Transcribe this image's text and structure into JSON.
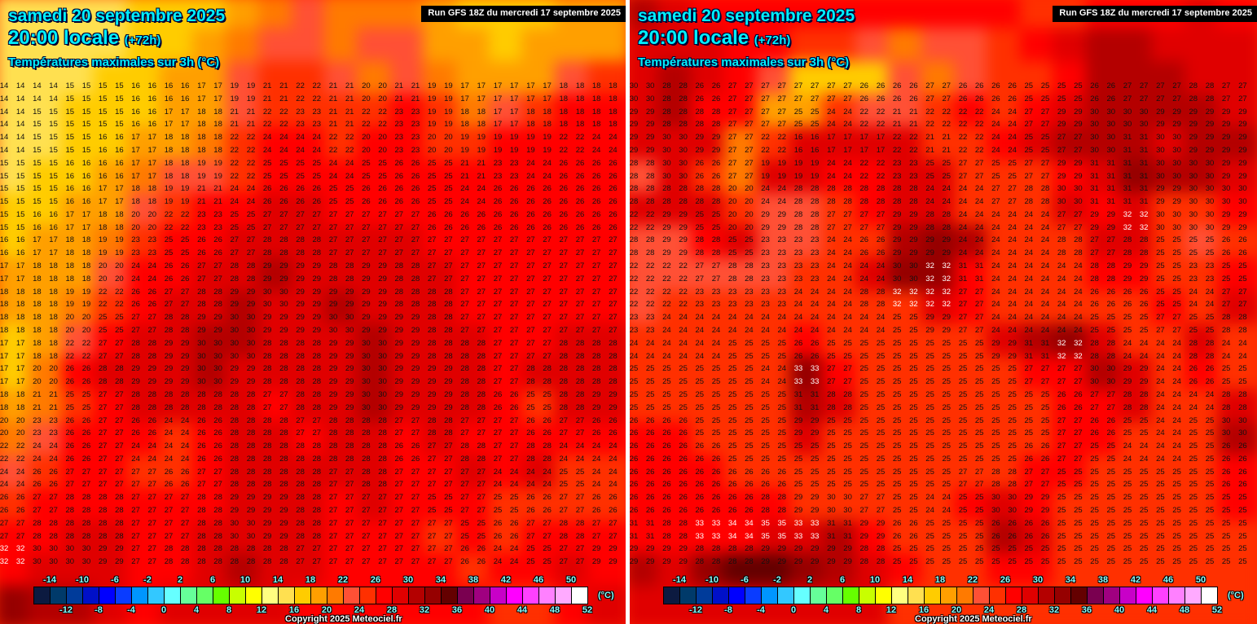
{
  "scale": {
    "unit": "(°C)",
    "labels_top": [
      "-14",
      "-10",
      "-6",
      "-2",
      "2",
      "6",
      "10",
      "14",
      "18",
      "22",
      "26",
      "30",
      "34",
      "38",
      "42",
      "46",
      "50"
    ],
    "labels_bottom": [
      "-12",
      "-8",
      "-4",
      "0",
      "4",
      "8",
      "12",
      "16",
      "20",
      "24",
      "28",
      "32",
      "36",
      "40",
      "44",
      "48",
      "52"
    ],
    "colors": [
      "#0c1a40",
      "#003a6a",
      "#003b9a",
      "#0010c8",
      "#0000ff",
      "#0a3cff",
      "#0096ff",
      "#33c8ff",
      "#66ffff",
      "#66ff99",
      "#66ff66",
      "#66ff00",
      "#c8ff00",
      "#ffff00",
      "#ffff80",
      "#ffe050",
      "#ffcc00",
      "#ff9f00",
      "#ff7a00",
      "#ff5035",
      "#ff3000",
      "#ff0000",
      "#e00000",
      "#b40000",
      "#960000",
      "#640000",
      "#7a0050",
      "#a00080",
      "#c800c8",
      "#ff00ff",
      "#ff40ff",
      "#ff80ff",
      "#ffaaff",
      "#ffffff"
    ]
  },
  "maps": [
    {
      "date": "samedi 20 septembre 2025",
      "time": "20:00 locale",
      "lead": "(+72h)",
      "parameter": "Températures maximales sur 3h (°C)",
      "run": "Run GFS 18Z du mercredi 17 septembre 2025",
      "copyright": "Copyright 2025 Meteociel.fr",
      "grid": [
        [
          14,
          14,
          15,
          15,
          16,
          16,
          17,
          19,
          21,
          22,
          21,
          20,
          21,
          19,
          17,
          17,
          17,
          18,
          18
        ],
        [
          14,
          15,
          15,
          15,
          16,
          17,
          18,
          21,
          22,
          23,
          21,
          22,
          23,
          19,
          18,
          17,
          18,
          18,
          18
        ],
        [
          14,
          15,
          15,
          16,
          17,
          18,
          18,
          22,
          24,
          24,
          22,
          20,
          23,
          20,
          19,
          19,
          19,
          22,
          24
        ],
        [
          15,
          15,
          16,
          16,
          17,
          18,
          19,
          22,
          25,
          25,
          24,
          25,
          26,
          25,
          21,
          23,
          24,
          26,
          26
        ],
        [
          15,
          15,
          16,
          17,
          18,
          19,
          21,
          24,
          26,
          26,
          25,
          26,
          26,
          25,
          24,
          26,
          26,
          26,
          26
        ],
        [
          15,
          16,
          17,
          18,
          20,
          22,
          23,
          25,
          27,
          27,
          27,
          27,
          27,
          26,
          26,
          26,
          26,
          26,
          26
        ],
        [
          16,
          17,
          18,
          19,
          23,
          25,
          26,
          27,
          28,
          28,
          27,
          27,
          27,
          27,
          27,
          27,
          27,
          27,
          27
        ],
        [
          17,
          18,
          18,
          20,
          24,
          26,
          27,
          28,
          29,
          29,
          28,
          29,
          28,
          27,
          27,
          27,
          27,
          27,
          27
        ],
        [
          18,
          18,
          19,
          22,
          26,
          27,
          28,
          29,
          30,
          29,
          29,
          29,
          28,
          28,
          27,
          27,
          27,
          27,
          27
        ],
        [
          18,
          18,
          20,
          25,
          27,
          28,
          29,
          30,
          29,
          29,
          30,
          29,
          29,
          28,
          27,
          27,
          27,
          27,
          27
        ],
        [
          17,
          18,
          22,
          27,
          28,
          29,
          30,
          30,
          28,
          28,
          29,
          30,
          29,
          28,
          28,
          27,
          27,
          28,
          28
        ],
        [
          17,
          20,
          26,
          28,
          29,
          29,
          30,
          29,
          28,
          28,
          29,
          30,
          29,
          29,
          28,
          27,
          28,
          28,
          28
        ],
        [
          18,
          21,
          25,
          27,
          28,
          28,
          28,
          28,
          27,
          28,
          29,
          30,
          29,
          29,
          28,
          26,
          25,
          28,
          29
        ],
        [
          20,
          23,
          26,
          27,
          26,
          24,
          26,
          28,
          28,
          27,
          28,
          28,
          27,
          28,
          27,
          27,
          26,
          27,
          26
        ],
        [
          22,
          24,
          26,
          27,
          24,
          24,
          26,
          28,
          28,
          28,
          28,
          28,
          26,
          27,
          28,
          27,
          28,
          24,
          24
        ],
        [
          24,
          26,
          27,
          27,
          27,
          26,
          27,
          28,
          28,
          28,
          27,
          28,
          27,
          27,
          27,
          24,
          24,
          25,
          24
        ],
        [
          26,
          27,
          28,
          28,
          27,
          27,
          28,
          29,
          29,
          28,
          27,
          27,
          27,
          25,
          27,
          25,
          26,
          27,
          26
        ],
        [
          27,
          28,
          28,
          28,
          27,
          27,
          28,
          30,
          29,
          28,
          27,
          27,
          27,
          27,
          25,
          26,
          27,
          28,
          27
        ],
        [
          32,
          30,
          30,
          29,
          27,
          28,
          28,
          28,
          28,
          27,
          27,
          27,
          27,
          27,
          26,
          24,
          25,
          27,
          29
        ]
      ]
    },
    {
      "date": "samedi 20 septembre 2025",
      "time": "20:00 locale",
      "lead": "(+72h)",
      "parameter": "Températures maximales sur 3h (°C)",
      "run": "Run GFS 18Z du mercredi 17 septembre 2025",
      "copyright": "Copyright 2025 Meteociel.fr",
      "grid": [
        [
          30,
          28,
          26,
          27,
          27,
          27,
          27,
          26,
          26,
          27,
          26,
          26,
          25,
          25,
          26,
          27,
          27,
          28,
          27
        ],
        [
          29,
          28,
          28,
          27,
          27,
          25,
          24,
          22,
          21,
          22,
          22,
          24,
          27,
          29,
          30,
          30,
          29,
          29,
          29
        ],
        [
          29,
          30,
          29,
          27,
          22,
          16,
          17,
          17,
          22,
          21,
          22,
          24,
          25,
          27,
          30,
          31,
          30,
          29,
          29
        ],
        [
          28,
          30,
          26,
          27,
          19,
          19,
          24,
          22,
          23,
          25,
          27,
          25,
          27,
          29,
          31,
          31,
          30,
          30,
          29
        ],
        [
          28,
          28,
          28,
          20,
          24,
          28,
          28,
          28,
          28,
          24,
          24,
          27,
          28,
          30,
          31,
          31,
          29,
          30,
          30
        ],
        [
          22,
          29,
          25,
          20,
          29,
          28,
          27,
          27,
          29,
          28,
          24,
          24,
          24,
          27,
          29,
          32,
          30,
          30,
          29
        ],
        [
          28,
          29,
          28,
          25,
          23,
          23,
          24,
          26,
          29,
          29,
          24,
          24,
          24,
          28,
          27,
          28,
          25,
          25,
          26
        ],
        [
          22,
          22,
          27,
          28,
          23,
          23,
          24,
          24,
          30,
          32,
          31,
          24,
          24,
          24,
          28,
          29,
          25,
          23,
          25
        ],
        [
          22,
          22,
          23,
          23,
          23,
          24,
          24,
          28,
          32,
          32,
          27,
          24,
          24,
          24,
          26,
          26,
          25,
          24,
          27
        ],
        [
          23,
          24,
          24,
          24,
          24,
          24,
          24,
          24,
          25,
          29,
          27,
          24,
          24,
          24,
          25,
          25,
          27,
          25,
          28
        ],
        [
          24,
          24,
          24,
          25,
          25,
          26,
          25,
          25,
          25,
          25,
          25,
          29,
          31,
          32,
          28,
          24,
          24,
          28,
          24
        ],
        [
          25,
          25,
          25,
          25,
          24,
          33,
          27,
          25,
          25,
          25,
          25,
          25,
          27,
          27,
          30,
          29,
          24,
          26,
          25
        ],
        [
          25,
          25,
          25,
          25,
          25,
          31,
          28,
          25,
          25,
          25,
          25,
          25,
          25,
          26,
          27,
          28,
          24,
          24,
          28
        ],
        [
          26,
          26,
          25,
          25,
          25,
          29,
          25,
          25,
          25,
          25,
          25,
          25,
          25,
          27,
          26,
          25,
          24,
          25,
          30
        ],
        [
          26,
          26,
          26,
          25,
          25,
          25,
          25,
          25,
          25,
          25,
          25,
          25,
          26,
          27,
          25,
          24,
          24,
          25,
          26
        ],
        [
          26,
          26,
          26,
          26,
          26,
          25,
          25,
          25,
          25,
          25,
          27,
          28,
          27,
          25,
          25,
          25,
          25,
          25,
          26
        ],
        [
          26,
          26,
          26,
          26,
          28,
          29,
          30,
          27,
          25,
          24,
          25,
          30,
          29,
          25,
          25,
          25,
          25,
          25,
          25
        ],
        [
          31,
          28,
          33,
          34,
          35,
          33,
          31,
          29,
          26,
          25,
          25,
          26,
          26,
          25,
          25,
          25,
          25,
          25,
          25
        ],
        [
          29,
          29,
          28,
          28,
          29,
          29,
          29,
          28,
          25,
          25,
          25,
          25,
          25,
          25,
          25,
          25,
          25,
          25,
          25
        ]
      ]
    }
  ]
}
